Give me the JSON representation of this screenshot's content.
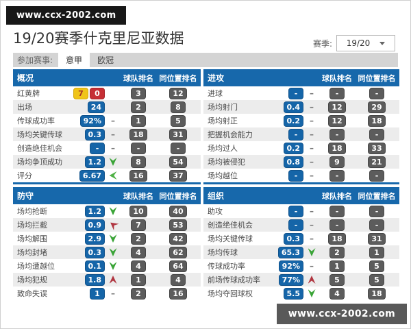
{
  "watermark_top": "www.ccx-2002.com",
  "watermark_bottom": "www.ccx-2002.com",
  "title": "19/20赛季什克里尼亚数据",
  "season": {
    "label": "赛季:",
    "value": "19/20"
  },
  "competitions": {
    "label": "参加赛事:",
    "tabs": [
      {
        "label": "意甲",
        "active": true
      },
      {
        "label": "欧冠",
        "active": false
      }
    ]
  },
  "columns": {
    "team_rank": "球队排名",
    "position_rank": "同位置排名"
  },
  "colors": {
    "header_blue": "#1768ab",
    "value_badge_blue": "#1565a8",
    "rank_badge_gray": "#5c5c5c",
    "trend_green": "#3aa437",
    "trend_red": "#b03540",
    "yellow_card": "#f0c419",
    "red_card": "#c62f35",
    "tab_bar_gray": "#d4d4d4",
    "watermark_top_bg": "#181818",
    "watermark_bottom_bg": "#595959"
  },
  "tables": [
    {
      "title": "概况",
      "rows": [
        {
          "label": "红黄牌",
          "cards": {
            "yellow": "7",
            "red": "0"
          },
          "trend": "none",
          "team_rank": "3",
          "position_rank": "12"
        },
        {
          "label": "出场",
          "value": "24",
          "trend": "none",
          "team_rank": "2",
          "position_rank": "8"
        },
        {
          "label": "传球成功率",
          "value": "92%",
          "trend": "flat",
          "team_rank": "1",
          "position_rank": "5"
        },
        {
          "label": "场均关键传球",
          "value": "0.3",
          "trend": "flat",
          "team_rank": "18",
          "position_rank": "31"
        },
        {
          "label": "创造绝佳机会",
          "value": "-",
          "trend": "flat",
          "team_rank": "-",
          "position_rank": "-"
        },
        {
          "label": "场均争顶成功",
          "value": "1.2",
          "trend": "down",
          "team_rank": "8",
          "position_rank": "54"
        },
        {
          "label": "评分",
          "value": "6.67",
          "trend": "slight-down",
          "team_rank": "16",
          "position_rank": "37"
        }
      ]
    },
    {
      "title": "进攻",
      "rows": [
        {
          "label": "进球",
          "value": "-",
          "trend": "flat",
          "team_rank": "-",
          "position_rank": "-"
        },
        {
          "label": "场均射门",
          "value": "0.4",
          "trend": "flat",
          "team_rank": "12",
          "position_rank": "29"
        },
        {
          "label": "场均射正",
          "value": "0.2",
          "trend": "flat",
          "team_rank": "12",
          "position_rank": "18"
        },
        {
          "label": "把握机会能力",
          "value": "-",
          "trend": "flat",
          "team_rank": "-",
          "position_rank": "-"
        },
        {
          "label": "场均过人",
          "value": "0.2",
          "trend": "flat",
          "team_rank": "18",
          "position_rank": "33"
        },
        {
          "label": "场均被侵犯",
          "value": "0.8",
          "trend": "flat",
          "team_rank": "9",
          "position_rank": "21"
        },
        {
          "label": "场均越位",
          "value": "-",
          "trend": "flat",
          "team_rank": "-",
          "position_rank": "-"
        }
      ]
    },
    {
      "title": "防守",
      "rows": [
        {
          "label": "场均抢断",
          "value": "1.2",
          "trend": "down",
          "team_rank": "10",
          "position_rank": "40"
        },
        {
          "label": "场均拦截",
          "value": "0.9",
          "trend": "slight-up",
          "team_rank": "7",
          "position_rank": "53"
        },
        {
          "label": "场均解围",
          "value": "2.9",
          "trend": "down",
          "team_rank": "2",
          "position_rank": "42"
        },
        {
          "label": "场均封堵",
          "value": "0.3",
          "trend": "down",
          "team_rank": "4",
          "position_rank": "62"
        },
        {
          "label": "场均遭越位",
          "value": "0.1",
          "trend": "down",
          "team_rank": "4",
          "position_rank": "64"
        },
        {
          "label": "场均犯规",
          "value": "1.8",
          "trend": "up",
          "team_rank": "1",
          "position_rank": "4"
        },
        {
          "label": "致命失误",
          "value": "1",
          "trend": "flat",
          "team_rank": "2",
          "position_rank": "16"
        }
      ]
    },
    {
      "title": "组织",
      "rows": [
        {
          "label": "助攻",
          "value": "-",
          "trend": "flat",
          "team_rank": "-",
          "position_rank": "-"
        },
        {
          "label": "创造绝佳机会",
          "value": "-",
          "trend": "flat",
          "team_rank": "-",
          "position_rank": "-"
        },
        {
          "label": "场均关键传球",
          "value": "0.3",
          "trend": "flat",
          "team_rank": "18",
          "position_rank": "31"
        },
        {
          "label": "场均传球",
          "value": "65.3",
          "trend": "down",
          "team_rank": "2",
          "position_rank": "1"
        },
        {
          "label": "传球成功率",
          "value": "92%",
          "trend": "flat",
          "team_rank": "1",
          "position_rank": "5"
        },
        {
          "label": "前场传球成功率",
          "value": "77%",
          "trend": "up",
          "team_rank": "5",
          "position_rank": "5"
        },
        {
          "label": "场均夺回球权",
          "value": "5.5",
          "trend": "down",
          "team_rank": "4",
          "position_rank": "18"
        }
      ]
    }
  ]
}
